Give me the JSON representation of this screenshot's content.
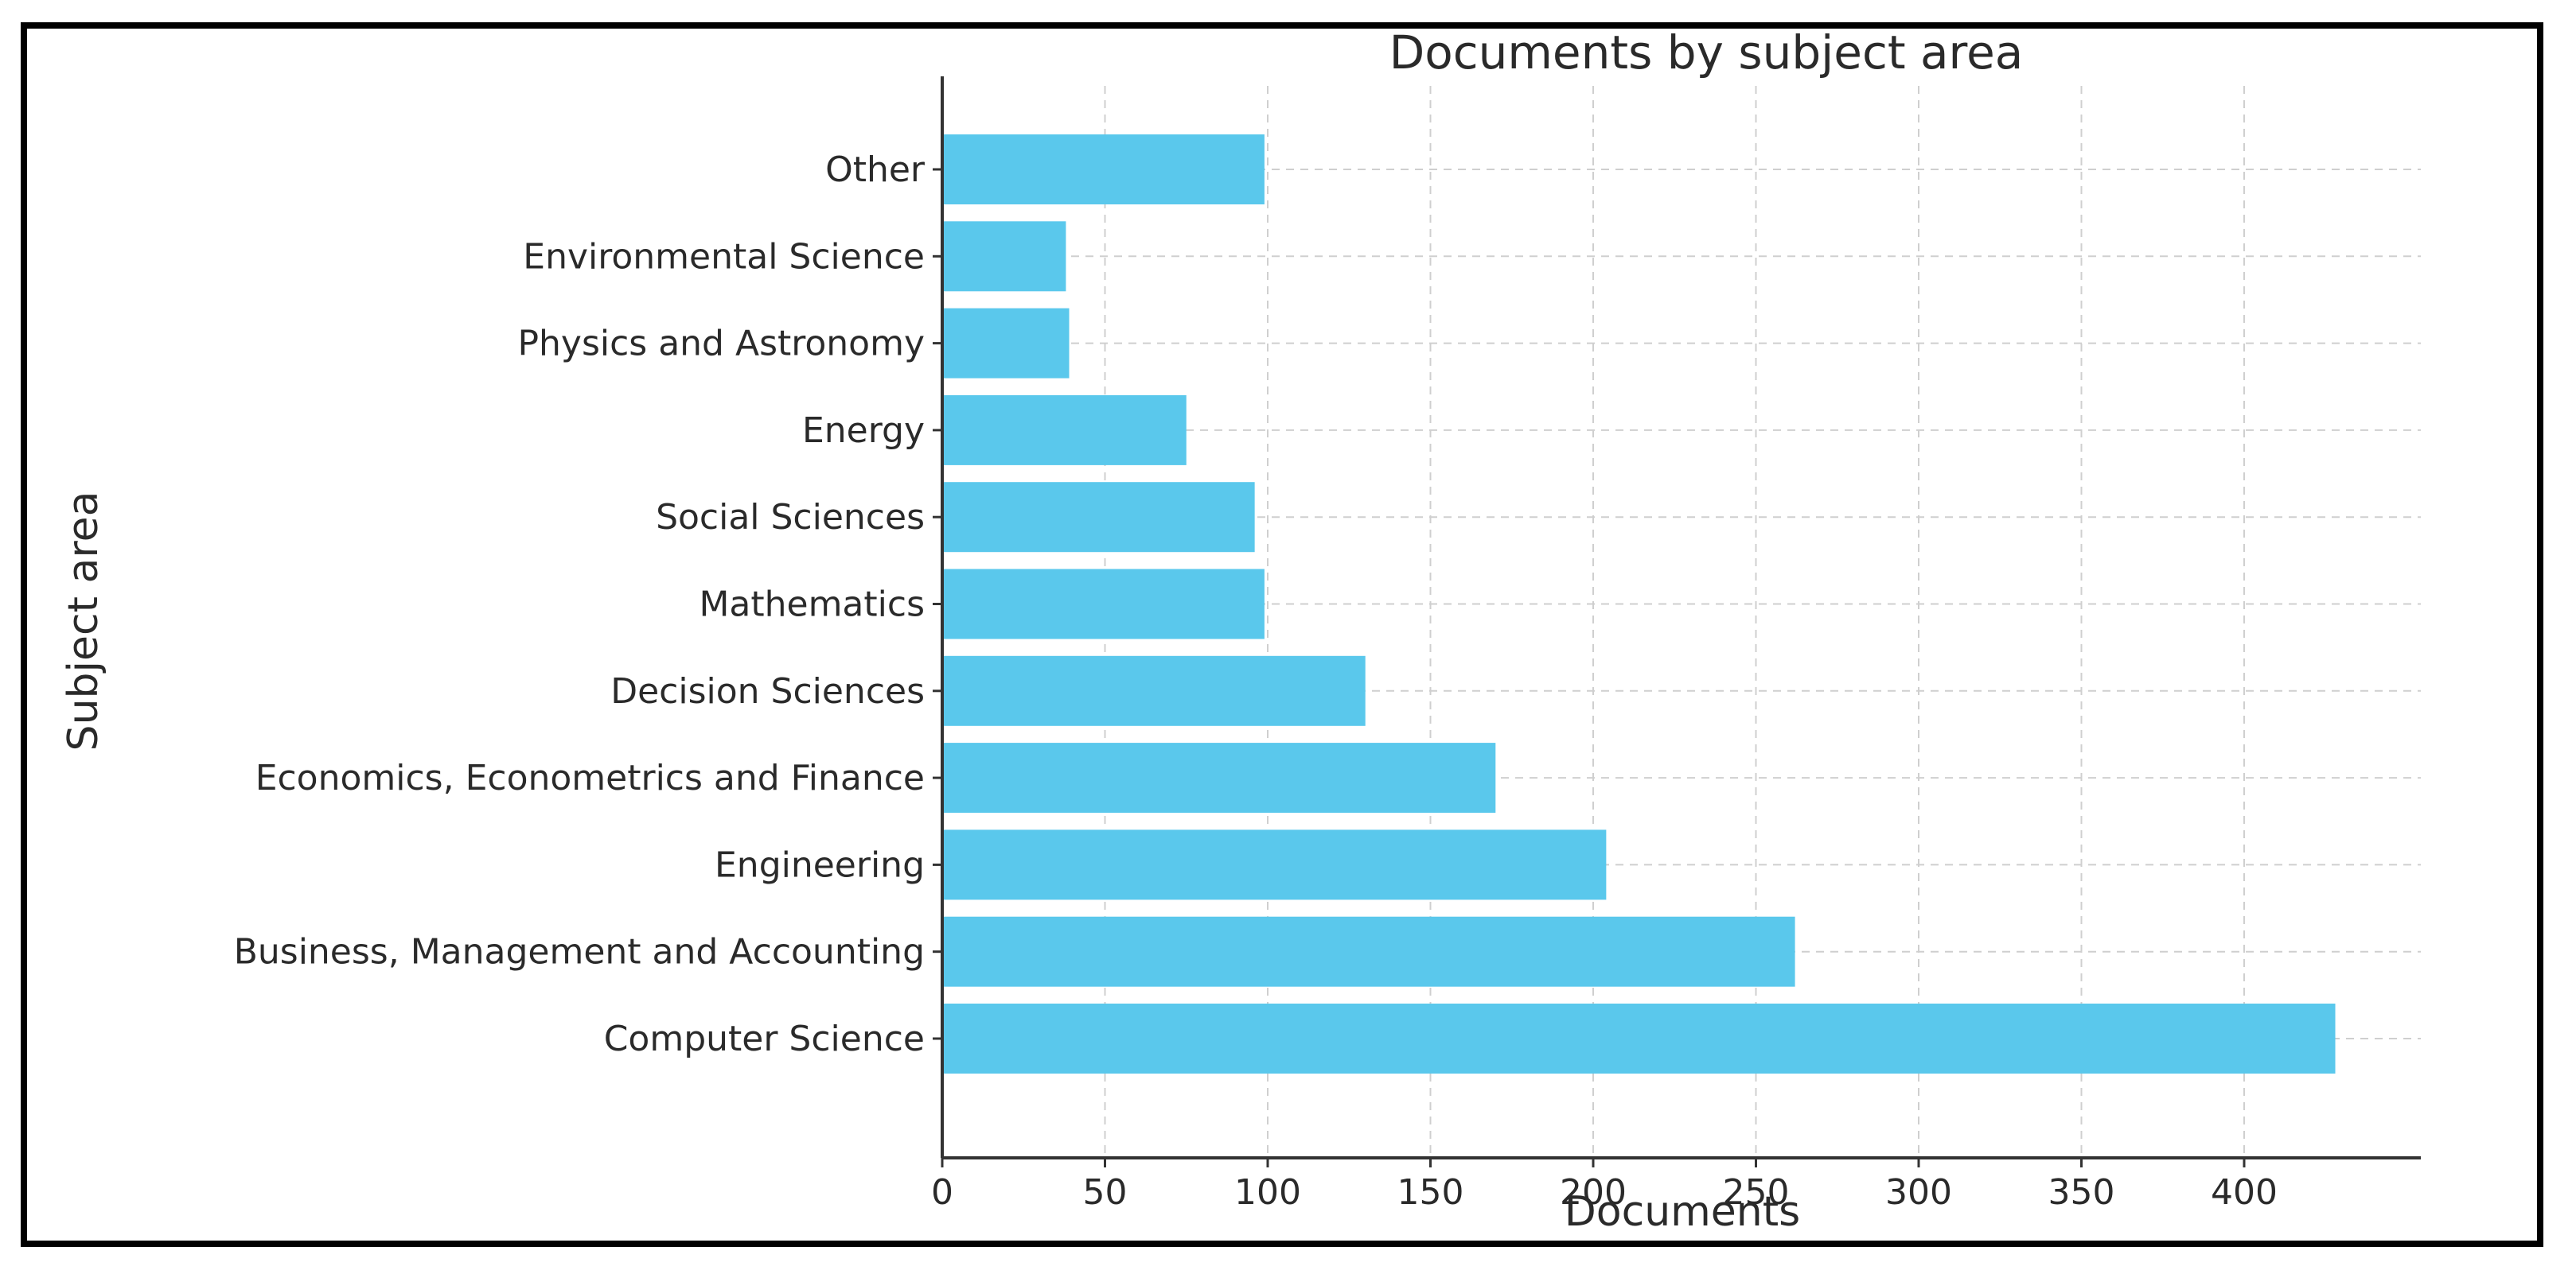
{
  "chart_data": {
    "type": "bar",
    "orientation": "horizontal",
    "title": "Documents by subject area",
    "xlabel": "Documents",
    "ylabel": "Subject area",
    "categories": [
      "Computer Science",
      "Business, Management and Accounting",
      "Engineering",
      "Economics, Econometrics and Finance",
      "Decision Sciences",
      "Mathematics",
      "Social Sciences",
      "Energy",
      "Physics and Astronomy",
      "Environmental Science",
      "Other"
    ],
    "values": [
      428,
      262,
      204,
      170,
      130,
      99,
      96,
      75,
      39,
      38,
      99
    ],
    "xlim": [
      0,
      450
    ],
    "xticks": [
      0,
      50,
      100,
      150,
      200,
      250,
      300,
      350,
      400
    ],
    "grid": true,
    "bar_color": "#5ac8ec",
    "grid_color": "#cfcfcf",
    "axis_color": "#333333"
  }
}
